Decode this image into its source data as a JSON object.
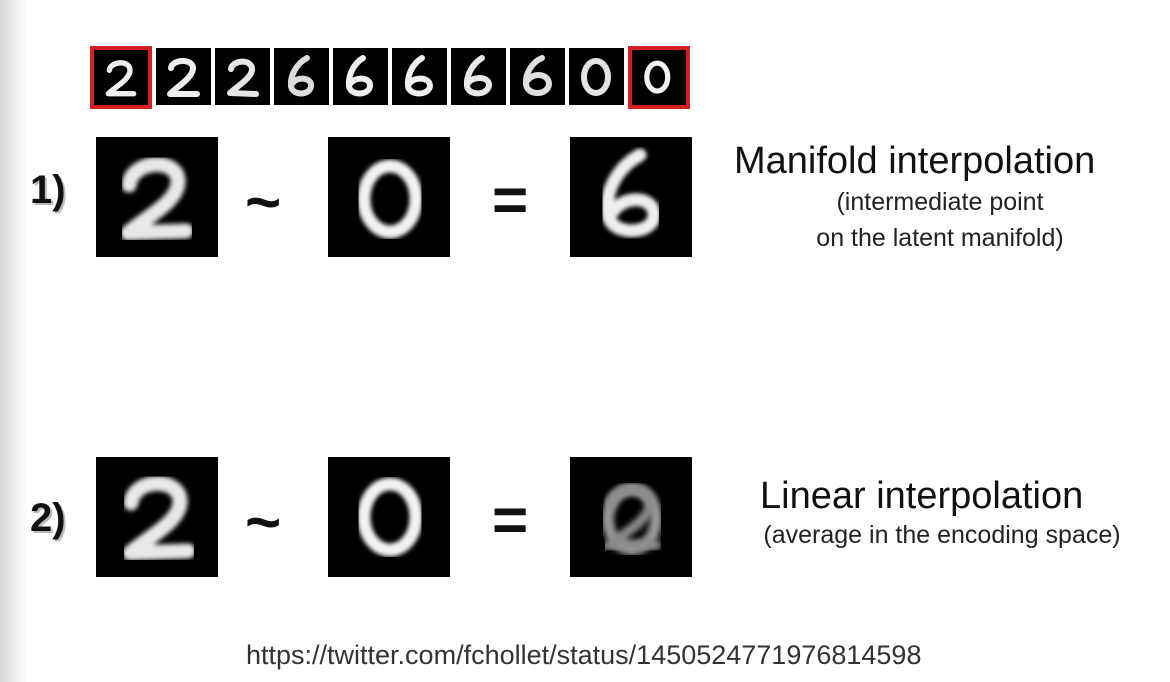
{
  "strip": {
    "digits": [
      "2",
      "2",
      "2",
      "6",
      "6",
      "6",
      "6",
      "6",
      "0",
      "0"
    ],
    "highlight_color": "#d71f1f"
  },
  "row1": {
    "label": "1)",
    "left_digit": "2",
    "operator_tilde": "~",
    "middle_digit": "0",
    "operator_equals": "=",
    "result_digit": "6",
    "title": "Manifold interpolation",
    "subtitle_line1": "(intermediate point",
    "subtitle_line2": "on the latent manifold)"
  },
  "row2": {
    "label": "2)",
    "left_digit": "2",
    "operator_tilde": "~",
    "middle_digit": "0",
    "operator_equals": "=",
    "result_digit": "blend of 2 and 0",
    "title": "Linear interpolation",
    "subtitle": "(average in the encoding space)"
  },
  "source_url": "https://twitter.com/fchollet/status/1450524771976814598"
}
